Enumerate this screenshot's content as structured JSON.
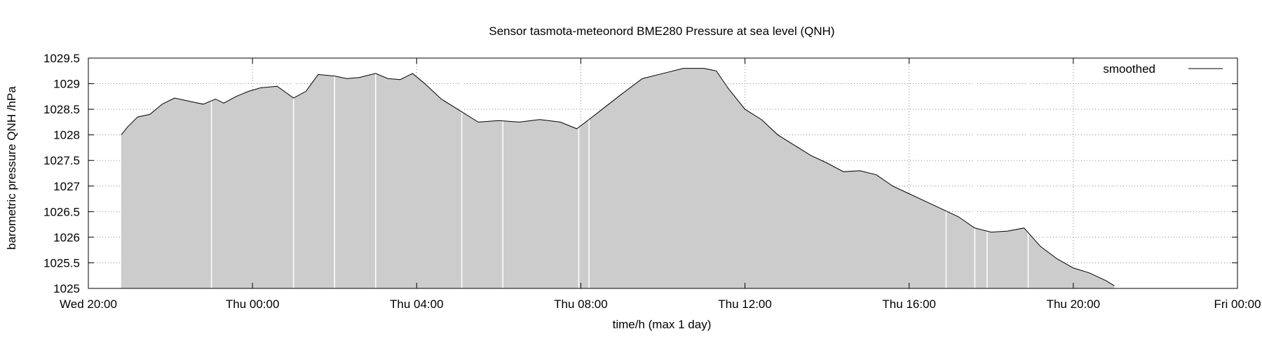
{
  "chart_data": {
    "type": "area",
    "title": "Sensor tasmota-meteonord BME280 Pressure at sea level (QNH)",
    "xlabel": "time/h (max 1 day)",
    "ylabel": "barometric pressure QNH /hPa",
    "xlim": [
      0,
      28
    ],
    "ylim": [
      1025,
      1029.5
    ],
    "x_unit": "hours since Wed 20:00",
    "grid": true,
    "legend_position": "top-right",
    "x_ticks": [
      {
        "x": 0,
        "label": "Wed 20:00"
      },
      {
        "x": 4,
        "label": "Thu 00:00"
      },
      {
        "x": 8,
        "label": "Thu 04:00"
      },
      {
        "x": 12,
        "label": "Thu 08:00"
      },
      {
        "x": 16,
        "label": "Thu 12:00"
      },
      {
        "x": 20,
        "label": "Thu 16:00"
      },
      {
        "x": 24,
        "label": "Thu 20:00"
      },
      {
        "x": 28,
        "label": "Fri 00:00"
      }
    ],
    "y_ticks": [
      {
        "y": 1025,
        "label": "1025"
      },
      {
        "y": 1025.5,
        "label": "1025.5"
      },
      {
        "y": 1026,
        "label": "1026"
      },
      {
        "y": 1026.5,
        "label": "1026.5"
      },
      {
        "y": 1027,
        "label": "1027"
      },
      {
        "y": 1027.5,
        "label": "1027.5"
      },
      {
        "y": 1028,
        "label": "1028"
      },
      {
        "y": 1028.5,
        "label": "1028.5"
      },
      {
        "y": 1029,
        "label": "1029"
      },
      {
        "y": 1029.5,
        "label": "1029.5"
      }
    ],
    "series": [
      {
        "name": "smoothed",
        "style": "line",
        "color": "#000000",
        "x": [
          0.8,
          0.95,
          1.2,
          1.5,
          1.8,
          2.1,
          2.5,
          2.8,
          3.1,
          3.3,
          3.6,
          3.9,
          4.2,
          4.6,
          5.0,
          5.3,
          5.6,
          6.0,
          6.3,
          6.6,
          7.0,
          7.3,
          7.6,
          7.9,
          8.2,
          8.6,
          9.0,
          9.5,
          10.0,
          10.5,
          11.0,
          11.5,
          11.9,
          12.2,
          12.6,
          13.0,
          13.5,
          14.0,
          14.5,
          15.0,
          15.3,
          15.6,
          16.0,
          16.4,
          16.8,
          17.2,
          17.6,
          18.0,
          18.4,
          18.8,
          19.2,
          19.6,
          20.0,
          20.4,
          20.8,
          21.2,
          21.6,
          22.0,
          22.4,
          22.8,
          23.2,
          23.6,
          24.0,
          24.4,
          24.8,
          25.0
        ],
        "y": [
          1028.0,
          1028.15,
          1028.35,
          1028.4,
          1028.6,
          1028.72,
          1028.65,
          1028.6,
          1028.7,
          1028.62,
          1028.75,
          1028.85,
          1028.92,
          1028.95,
          1028.72,
          1028.85,
          1029.18,
          1029.15,
          1029.1,
          1029.12,
          1029.2,
          1029.1,
          1029.08,
          1029.2,
          1029.0,
          1028.7,
          1028.5,
          1028.25,
          1028.28,
          1028.25,
          1028.3,
          1028.25,
          1028.12,
          1028.3,
          1028.55,
          1028.8,
          1029.1,
          1029.2,
          1029.3,
          1029.3,
          1029.25,
          1028.9,
          1028.5,
          1028.3,
          1028.0,
          1027.8,
          1027.6,
          1027.45,
          1027.28,
          1027.3,
          1027.22,
          1027.0,
          1026.85,
          1026.7,
          1026.55,
          1026.4,
          1026.18,
          1026.1,
          1026.12,
          1026.18,
          1025.82,
          1025.58,
          1025.4,
          1025.3,
          1025.15,
          1025.05
        ]
      },
      {
        "name": "",
        "style": "filled area",
        "color": "#cccccc",
        "x": [
          0.8,
          0.95,
          1.2,
          1.5,
          1.8,
          2.1,
          2.5,
          2.8,
          3.1,
          3.3,
          3.6,
          3.9,
          4.2,
          4.6,
          5.0,
          5.3,
          5.6,
          6.0,
          6.3,
          6.6,
          7.0,
          7.3,
          7.6,
          7.9,
          8.2,
          8.6,
          9.0,
          9.5,
          10.0,
          10.5,
          11.0,
          11.5,
          11.9,
          12.2,
          12.6,
          13.0,
          13.5,
          14.0,
          14.5,
          15.0,
          15.3,
          15.6,
          16.0,
          16.4,
          16.8,
          17.2,
          17.6,
          18.0,
          18.4,
          18.8,
          19.2,
          19.6,
          20.0,
          20.4,
          20.8,
          21.2,
          21.6,
          22.0,
          22.4,
          22.8,
          23.2,
          23.6,
          24.0,
          24.4,
          24.8,
          25.0
        ],
        "y": [
          1028.0,
          1028.15,
          1028.35,
          1028.4,
          1028.6,
          1028.72,
          1028.65,
          1028.6,
          1028.7,
          1028.62,
          1028.75,
          1028.85,
          1028.92,
          1028.95,
          1028.72,
          1028.85,
          1029.18,
          1029.15,
          1029.1,
          1029.12,
          1029.2,
          1029.1,
          1029.08,
          1029.2,
          1029.0,
          1028.7,
          1028.5,
          1028.25,
          1028.28,
          1028.25,
          1028.3,
          1028.25,
          1028.12,
          1028.3,
          1028.55,
          1028.8,
          1029.1,
          1029.2,
          1029.3,
          1029.3,
          1029.25,
          1028.9,
          1028.5,
          1028.3,
          1028.0,
          1027.8,
          1027.6,
          1027.45,
          1027.28,
          1027.3,
          1027.22,
          1027.0,
          1026.85,
          1026.7,
          1026.55,
          1026.4,
          1026.18,
          1026.1,
          1026.12,
          1026.18,
          1025.82,
          1025.58,
          1025.4,
          1025.3,
          1025.15,
          1025.05
        ]
      }
    ],
    "data_gaps_x": [
      3.0,
      5.0,
      6.0,
      7.0,
      9.1,
      10.1,
      11.95,
      12.2,
      20.9,
      21.6,
      21.9,
      22.9
    ]
  }
}
